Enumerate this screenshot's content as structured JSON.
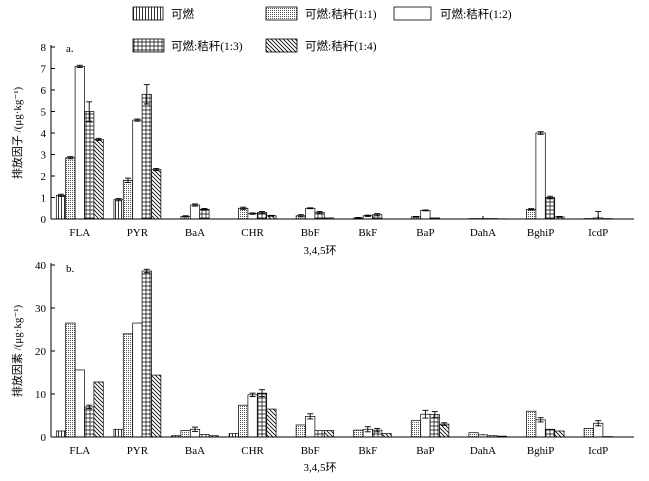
{
  "chart_data": [
    {
      "panel": "a.",
      "type": "bar",
      "categories": [
        "FLA",
        "PYR",
        "BaA",
        "CHR",
        "BbF",
        "BkF",
        "BaP",
        "DahA",
        "BghiP",
        "IcdP"
      ],
      "series": [
        {
          "name": "可燃",
          "values": [
            1.1,
            0.9,
            0,
            0,
            0,
            0,
            0,
            0,
            0,
            0
          ],
          "errors": [
            0.05,
            0.05,
            0,
            0,
            0,
            0,
            0,
            0,
            0,
            0
          ]
        },
        {
          "name": "可燃:秸秆(1:1)",
          "values": [
            2.85,
            1.8,
            0.12,
            0.5,
            0.15,
            0.05,
            0.1,
            0.02,
            0.45,
            0.02
          ],
          "errors": [
            0.05,
            0.1,
            0.03,
            0.05,
            0.05,
            0.02,
            0.02,
            0,
            0.03,
            0
          ]
        },
        {
          "name": "可燃:秸秆(1:2)",
          "values": [
            7.1,
            4.6,
            0.65,
            0.25,
            0.5,
            0.15,
            0.4,
            0.02,
            4.0,
            0.05
          ],
          "errors": [
            0.05,
            0.05,
            0.05,
            0.03,
            0.02,
            0.03,
            0.02,
            0,
            0.06,
            0.3
          ]
        },
        {
          "name": "可燃:秸秆(1:3)",
          "values": [
            5.0,
            5.8,
            0.45,
            0.3,
            0.3,
            0.2,
            0.05,
            0.02,
            1.0,
            0.02
          ],
          "errors": [
            0.45,
            0.45,
            0.04,
            0.05,
            0.05,
            0.05,
            0,
            0,
            0.06,
            0
          ]
        },
        {
          "name": "可燃:秸秆(1:4)",
          "values": [
            3.7,
            2.3,
            0,
            0.15,
            0.05,
            0,
            0,
            0.01,
            0.1,
            0
          ],
          "errors": [
            0.05,
            0.05,
            0,
            0.02,
            0,
            0,
            0,
            0,
            0.02,
            0
          ]
        }
      ],
      "xlabel": "3,4,5环",
      "ylabel": "排放因子 /(μg·kg⁻¹)",
      "ylim": [
        0,
        8
      ],
      "yticks": [
        0,
        1,
        2,
        3,
        4,
        5,
        6,
        7,
        8
      ],
      "legend": "top",
      "grid": false
    },
    {
      "panel": "b.",
      "type": "bar",
      "categories": [
        "FLA",
        "PYR",
        "BaA",
        "CHR",
        "BbF",
        "BkF",
        "BaP",
        "DahA",
        "BghiP",
        "IcdP"
      ],
      "series": [
        {
          "name": "可燃",
          "values": [
            1.4,
            1.8,
            0.3,
            0.8,
            0,
            0,
            0,
            0,
            0,
            0
          ],
          "errors": [
            0,
            0,
            0,
            0,
            0,
            0,
            0,
            0,
            0,
            0
          ]
        },
        {
          "name": "可燃:秸秆(1:1)",
          "values": [
            26.5,
            24.0,
            1.5,
            7.4,
            2.8,
            1.6,
            3.8,
            1.0,
            6.0,
            2.0
          ],
          "errors": [
            0,
            0,
            0,
            0,
            0,
            0,
            0,
            0,
            0,
            0
          ]
        },
        {
          "name": "可燃:秸秆(1:2)",
          "values": [
            15.6,
            26.5,
            1.8,
            9.8,
            4.8,
            1.8,
            5.3,
            0.5,
            4.0,
            3.2
          ],
          "errors": [
            0,
            0,
            0.5,
            0.4,
            0.6,
            0.6,
            0.9,
            0,
            0.5,
            0.6
          ]
        },
        {
          "name": "可燃:秸秆(1:3)",
          "values": [
            7.0,
            38.6,
            0.6,
            10.2,
            1.5,
            1.6,
            5.2,
            0.3,
            1.8,
            0.1
          ],
          "errors": [
            0.4,
            0.4,
            0,
            0.8,
            0,
            0.4,
            0.7,
            0,
            0,
            0
          ]
        },
        {
          "name": "可燃:秸秆(1:4)",
          "values": [
            12.8,
            14.4,
            0.3,
            6.5,
            1.5,
            0.8,
            3.0,
            0.2,
            1.4,
            0
          ],
          "errors": [
            0,
            0,
            0,
            0,
            0,
            0,
            0.3,
            0,
            0,
            0
          ]
        }
      ],
      "xlabel": "3,4,5环",
      "ylabel": "排放因素 /(μg·kg⁻¹)",
      "ylim": [
        0,
        40
      ],
      "yticks": [
        0,
        10,
        20,
        30,
        40
      ],
      "grid": false
    }
  ]
}
